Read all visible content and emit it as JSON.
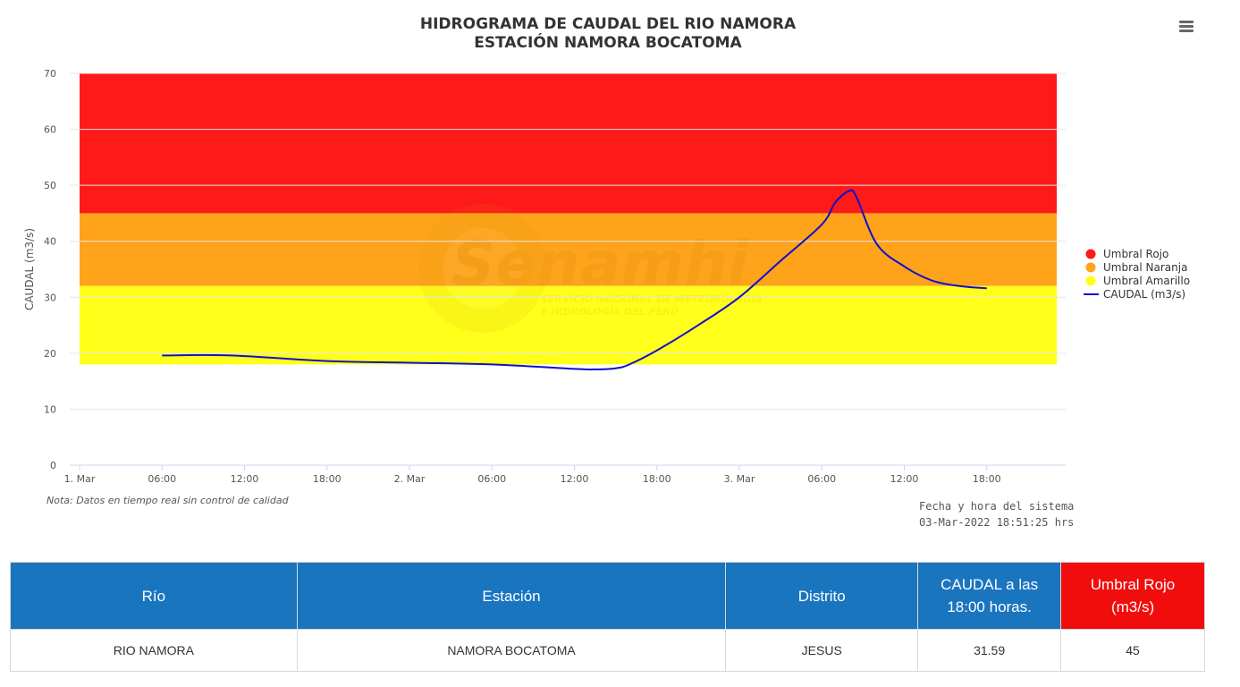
{
  "chart_data": {
    "type": "line",
    "title": "HIDROGRAMA DE CAUDAL DEL RIO NAMORA",
    "subtitle": "ESTACIÓN NAMORA BOCATOMA",
    "ylabel": "CAUDAL (m3/s)",
    "xlabel": "",
    "ylim": [
      0,
      70
    ],
    "y_ticks": [
      0,
      10,
      20,
      30,
      40,
      50,
      60,
      70
    ],
    "x_ticks": [
      "1. Mar",
      "06:00",
      "12:00",
      "18:00",
      "2. Mar",
      "06:00",
      "12:00",
      "18:00",
      "3. Mar",
      "06:00",
      "12:00",
      "18:00"
    ],
    "bands": [
      {
        "name": "Umbral Rojo",
        "from": 45,
        "to": 70,
        "color": "#ff1a1a"
      },
      {
        "name": "Umbral Naranja",
        "from": 32,
        "to": 45,
        "color": "#ffa31a"
      },
      {
        "name": "Umbral Amarillo",
        "from": 18,
        "to": 32,
        "color": "#ffff1a"
      }
    ],
    "series": [
      {
        "name": "CAUDAL (m3/s)",
        "color": "#1010cc",
        "x": [
          "2022-03-01 06:00",
          "2022-03-01 11:00",
          "2022-03-01 18:00",
          "2022-03-02 00:00",
          "2022-03-02 06:00",
          "2022-03-02 12:00",
          "2022-03-02 13:30",
          "2022-03-02 15:00",
          "2022-03-02 16:00",
          "2022-03-02 18:00",
          "2022-03-02 21:00",
          "2022-03-03 00:00",
          "2022-03-03 03:00",
          "2022-03-03 06:00",
          "2022-03-03 07:00",
          "2022-03-03 08:00",
          "2022-03-03 08:30",
          "2022-03-03 10:00",
          "2022-03-03 12:00",
          "2022-03-03 14:00",
          "2022-03-03 16:00",
          "2022-03-03 18:00"
        ],
        "values": [
          19.6,
          19.6,
          18.6,
          18.3,
          18.0,
          17.2,
          17.1,
          17.3,
          18.0,
          20.5,
          25.0,
          30.0,
          36.5,
          43.0,
          47.0,
          49.0,
          48.0,
          39.5,
          35.5,
          33.0,
          32.0,
          31.6
        ]
      }
    ],
    "legend_position": "right",
    "grid": true
  },
  "legend": [
    "Umbral Rojo",
    "Umbral Naranja",
    "Umbral Amarillo",
    "CAUDAL (m3/s)"
  ],
  "note": "Nota: Datos en tiempo real sin control de calidad",
  "system_date_label": "Fecha y hora del sistema",
  "system_date": "03-Mar-2022 18:51:25 hrs",
  "watermark": {
    "brand": "Senamhi",
    "line1": "SERVICIO NACIONAL DE METEOROLOGÍA",
    "line2": "E HIDROLOGÍA DEL PERÚ"
  },
  "colors": {
    "header_blue": "#1a75bf",
    "header_red": "#f20d0d"
  },
  "table": {
    "headers": {
      "rio": "Río",
      "estacion": "Estación",
      "distrito": "Distrito",
      "caudal_line1": "CAUDAL a las",
      "caudal_line2": "18:00 horas.",
      "umbral_line1": "Umbral Rojo",
      "umbral_line2": "(m3/s)"
    },
    "row": {
      "rio": "RIO NAMORA",
      "estacion": "NAMORA BOCATOMA",
      "distrito": "JESUS",
      "caudal": "31.59",
      "umbral": "45"
    }
  }
}
